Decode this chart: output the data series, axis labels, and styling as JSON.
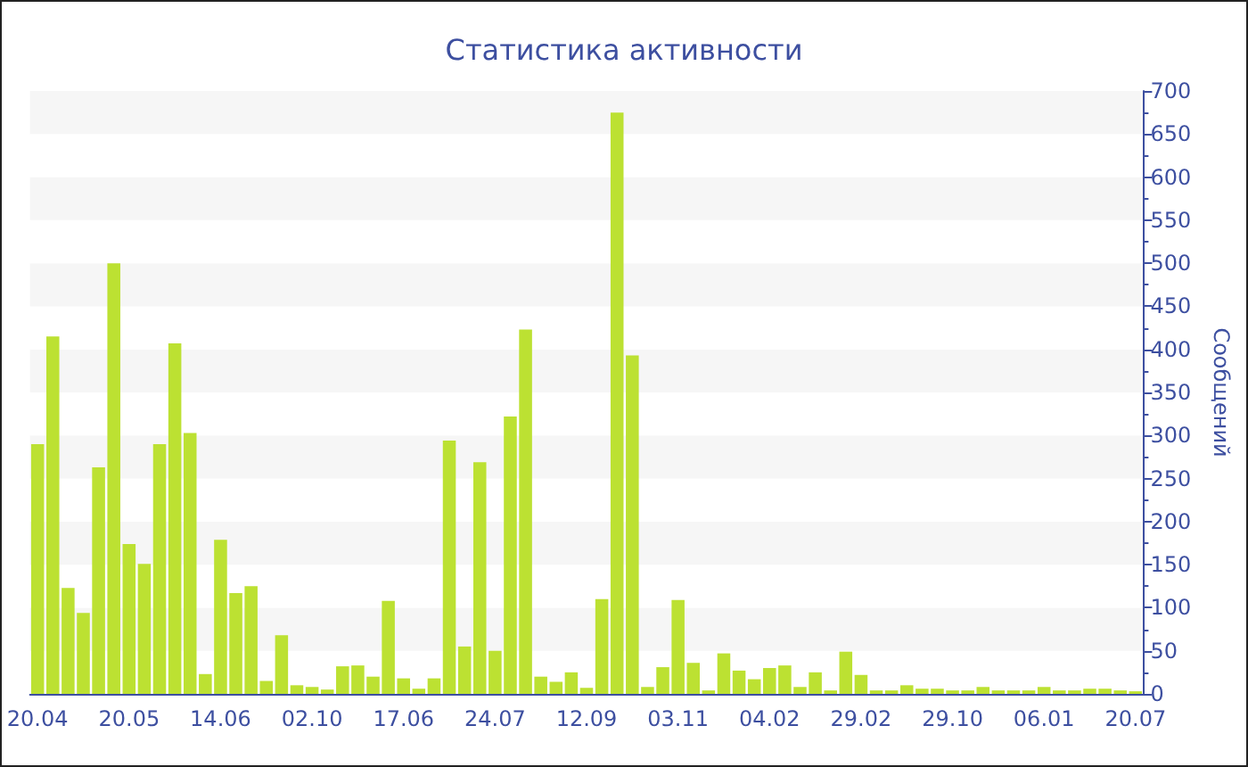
{
  "chart_data": {
    "type": "bar",
    "title": "Статистика активности",
    "ylabel": "Сообщений",
    "categories": [
      "20.04",
      null,
      null,
      null,
      null,
      null,
      "20.05",
      null,
      null,
      null,
      null,
      null,
      "14.06",
      null,
      null,
      null,
      null,
      null,
      "02.10",
      null,
      null,
      null,
      null,
      null,
      "17.06",
      null,
      null,
      null,
      null,
      null,
      "24.07",
      null,
      null,
      null,
      null,
      null,
      "12.09",
      null,
      null,
      null,
      null,
      null,
      "03.11",
      null,
      null,
      null,
      null,
      null,
      "04.02",
      null,
      null,
      null,
      null,
      null,
      "29.02",
      null,
      null,
      null,
      null,
      null,
      "29.10",
      null,
      null,
      null,
      null,
      null,
      "06.01",
      null,
      null,
      null,
      null,
      null,
      "20.07"
    ],
    "values": [
      290,
      415,
      123,
      94,
      263,
      500,
      174,
      151,
      290,
      407,
      303,
      23,
      179,
      117,
      125,
      15,
      68,
      10,
      8,
      5,
      32,
      33,
      20,
      108,
      18,
      6,
      18,
      294,
      55,
      269,
      50,
      322,
      423,
      20,
      14,
      25,
      7,
      110,
      675,
      393,
      8,
      31,
      109,
      36,
      4,
      47,
      27,
      17,
      30,
      33,
      8,
      25,
      4,
      49,
      22,
      4,
      4,
      10,
      6,
      6,
      4,
      4,
      8,
      4,
      4,
      4,
      8,
      4,
      4,
      6,
      6,
      4,
      3
    ],
    "color": "#bce132",
    "yticks": [
      0,
      50,
      100,
      150,
      200,
      250,
      300,
      350,
      400,
      450,
      500,
      550,
      600,
      650,
      700
    ],
    "ylim": [
      0,
      700
    ]
  }
}
